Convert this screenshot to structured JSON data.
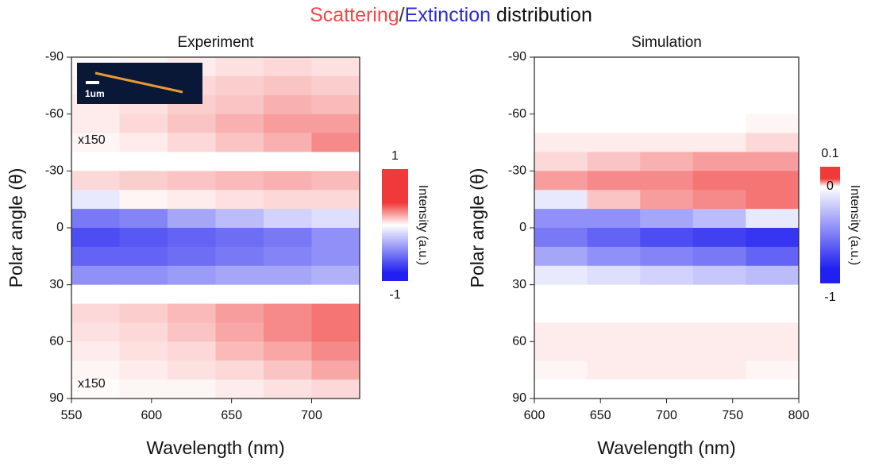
{
  "suptitle": [
    {
      "text": "Scattering",
      "color": "#f04848"
    },
    {
      "text": "/",
      "color": "#333333"
    },
    {
      "text": "Extinction",
      "color": "#2a2ad8"
    },
    {
      "text": " distribution",
      "color": "#111111"
    }
  ],
  "chart_data": [
    {
      "type": "heatmap",
      "title": "Experiment",
      "x_label": "Wavelength (nm)",
      "y_label": "Polar angle (θ)",
      "x": [
        565,
        595,
        625,
        655,
        685,
        715
      ],
      "y": [
        -85,
        -75,
        -65,
        -55,
        -45,
        -35,
        -25,
        -15,
        -5,
        5,
        15,
        25,
        35,
        45,
        55,
        65,
        75,
        85
      ],
      "values": [
        [
          0.02,
          0.05,
          0.1,
          0.15,
          0.2,
          0.15
        ],
        [
          0.05,
          0.1,
          0.2,
          0.25,
          0.3,
          0.25
        ],
        [
          0.1,
          0.15,
          0.25,
          0.3,
          0.4,
          0.35
        ],
        [
          0.1,
          0.2,
          0.3,
          0.4,
          0.5,
          0.5
        ],
        [
          0.05,
          0.1,
          0.2,
          0.3,
          0.4,
          0.6
        ],
        [
          0,
          0,
          0,
          0,
          0,
          0
        ],
        [
          0.2,
          0.25,
          0.3,
          0.35,
          0.4,
          0.35
        ],
        [
          -0.1,
          0.05,
          0.1,
          0.15,
          0.2,
          0.2
        ],
        [
          -0.6,
          -0.55,
          -0.4,
          -0.3,
          -0.2,
          -0.15
        ],
        [
          -0.8,
          -0.75,
          -0.7,
          -0.65,
          -0.6,
          -0.5
        ],
        [
          -0.7,
          -0.7,
          -0.65,
          -0.6,
          -0.55,
          -0.5
        ],
        [
          -0.5,
          -0.5,
          -0.45,
          -0.4,
          -0.4,
          -0.35
        ],
        [
          0,
          0,
          0,
          0,
          0,
          0
        ],
        [
          0.2,
          0.25,
          0.35,
          0.5,
          0.6,
          0.7
        ],
        [
          0.15,
          0.2,
          0.3,
          0.45,
          0.6,
          0.7
        ],
        [
          0.1,
          0.15,
          0.2,
          0.35,
          0.45,
          0.6
        ],
        [
          0.05,
          0.1,
          0.15,
          0.2,
          0.3,
          0.45
        ],
        [
          0.02,
          0.05,
          0.05,
          0.1,
          0.15,
          0.2
        ]
      ],
      "xlim": [
        550,
        730
      ],
      "xticks": [
        550,
        600,
        650,
        700
      ],
      "ylim": [
        -90,
        90
      ],
      "yticks": [
        -90,
        -60,
        -30,
        0,
        30,
        60,
        90
      ],
      "y_inverted": true,
      "colors": [
        "#2020f0",
        "#ffffff",
        "#f03a3a"
      ],
      "colorbar": {
        "label": "Intensity (a.u.)",
        "lim": [
          -1,
          1
        ],
        "ticks": [
          1,
          -1
        ]
      },
      "annotations": [
        {
          "text": "x150"
        },
        {
          "text": "x150"
        },
        {
          "text": "1um"
        }
      ]
    },
    {
      "type": "heatmap",
      "title": "Simulation",
      "x_label": "Wavelength (nm)",
      "y_label": "Polar angle (θ)",
      "x": [
        620,
        660,
        700,
        740,
        780
      ],
      "y": [
        -85,
        -75,
        -65,
        -55,
        -45,
        -35,
        -25,
        -15,
        -5,
        5,
        15,
        25,
        35,
        45,
        55,
        65,
        75,
        85
      ],
      "values": [
        [
          0,
          0,
          0,
          0,
          0
        ],
        [
          0,
          0,
          0,
          0,
          0
        ],
        [
          0,
          0,
          0,
          0,
          0
        ],
        [
          0,
          0,
          0,
          0,
          0.005
        ],
        [
          0.01,
          0.01,
          0.01,
          0.01,
          0.02
        ],
        [
          0.02,
          0.03,
          0.04,
          0.05,
          0.05
        ],
        [
          0.05,
          0.06,
          0.06,
          0.07,
          0.07
        ],
        [
          -0.1,
          0.03,
          0.05,
          0.06,
          0.07
        ],
        [
          -0.5,
          -0.5,
          -0.4,
          -0.3,
          -0.1
        ],
        [
          -0.6,
          -0.7,
          -0.8,
          -0.85,
          -0.9
        ],
        [
          -0.4,
          -0.5,
          -0.55,
          -0.6,
          -0.7
        ],
        [
          -0.1,
          -0.15,
          -0.2,
          -0.25,
          -0.3
        ],
        [
          0,
          0,
          0,
          0,
          0
        ],
        [
          0,
          0,
          0,
          0,
          0
        ],
        [
          0.01,
          0.01,
          0.01,
          0.01,
          0.01
        ],
        [
          0.01,
          0.01,
          0.01,
          0.01,
          0.01
        ],
        [
          0.005,
          0.01,
          0.01,
          0.01,
          0.005
        ],
        [
          0,
          0,
          0,
          0,
          0
        ]
      ],
      "xlim": [
        600,
        800
      ],
      "xticks": [
        600,
        650,
        700,
        750,
        800
      ],
      "ylim": [
        -90,
        90
      ],
      "yticks": [
        -90,
        -60,
        -30,
        0,
        30,
        60,
        90
      ],
      "y_inverted": true,
      "colors": [
        "#2020f0",
        "#ffffff",
        "#f03a3a"
      ],
      "colorbar": {
        "label": "Intensity (a.u.)",
        "lim": [
          -1,
          0.1
        ],
        "ticks": [
          0.1,
          0,
          -1
        ]
      }
    }
  ]
}
